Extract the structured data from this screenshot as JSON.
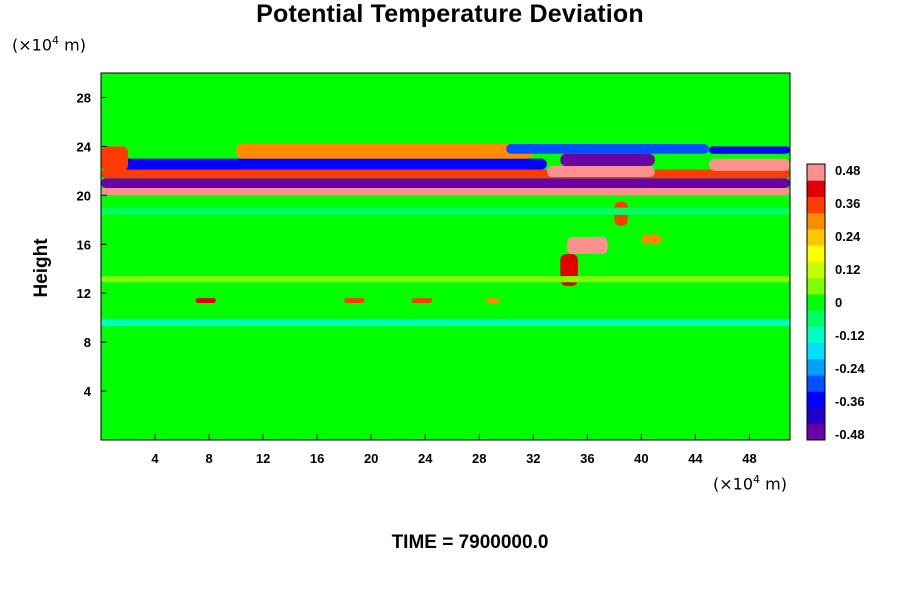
{
  "title": "Potential Temperature Deviation",
  "time_label": "TIME = 7900000.0",
  "chart_data": {
    "type": "heatmap",
    "title": "Potential Temperature Deviation",
    "xlabel": "",
    "ylabel": "Height",
    "x_unit_prefix": "(×10",
    "x_unit_exp": "4",
    "x_unit_suffix": " m)",
    "y_unit_prefix": "(×10",
    "y_unit_exp": "4",
    "y_unit_suffix": " m)",
    "xlim": [
      0,
      51
    ],
    "ylim": [
      0,
      30
    ],
    "xticks": [
      "4",
      "8",
      "12",
      "16",
      "20",
      "24",
      "28",
      "32",
      "36",
      "40",
      "44",
      "48"
    ],
    "yticks": [
      "4",
      "8",
      "12",
      "16",
      "20",
      "24",
      "28"
    ],
    "colorbar": {
      "min": -0.48,
      "max": 0.48,
      "ticks": [
        "0.48",
        "0.36",
        "0.24",
        "0.12",
        "0",
        "-0.12",
        "-0.24",
        "-0.36",
        "-0.48"
      ],
      "colors": [
        "#6a00a8",
        "#2000c8",
        "#0000ff",
        "#0050ff",
        "#00a0ff",
        "#00e0ff",
        "#00ffc0",
        "#00ff60",
        "#00ff00",
        "#80ff00",
        "#c8ff00",
        "#ffff00",
        "#ffc800",
        "#ff8c00",
        "#ff3c00",
        "#e00000",
        "#ff9090"
      ]
    },
    "background_value": 0.0,
    "features": [
      {
        "x0": 0,
        "x1": 51,
        "y0": 20.0,
        "y1": 20.6,
        "value": 0.48
      },
      {
        "x0": 0,
        "x1": 51,
        "y0": 20.6,
        "y1": 21.4,
        "value": -0.48
      },
      {
        "x0": 0,
        "x1": 51,
        "y0": 21.4,
        "y1": 22.1,
        "value": 0.36
      },
      {
        "x0": 0,
        "x1": 33,
        "y0": 22.1,
        "y1": 23.0,
        "value": -0.36
      },
      {
        "x0": 10,
        "x1": 32,
        "y0": 23.0,
        "y1": 24.2,
        "value": 0.3
      },
      {
        "x0": 33,
        "x1": 41,
        "y0": 21.5,
        "y1": 22.4,
        "value": 0.48
      },
      {
        "x0": 34,
        "x1": 41,
        "y0": 22.4,
        "y1": 23.4,
        "value": -0.48
      },
      {
        "x0": 30,
        "x1": 45,
        "y0": 23.4,
        "y1": 24.2,
        "value": -0.3
      },
      {
        "x0": 45,
        "x1": 51,
        "y0": 22.0,
        "y1": 23.0,
        "value": 0.48
      },
      {
        "x0": 45,
        "x1": 51,
        "y0": 23.4,
        "y1": 24.0,
        "value": -0.36
      },
      {
        "x0": 0,
        "x1": 2,
        "y0": 22.0,
        "y1": 24.0,
        "value": 0.36
      },
      {
        "x0": 34.5,
        "x1": 37.5,
        "y0": 15.2,
        "y1": 16.6,
        "value": 0.48
      },
      {
        "x0": 34.0,
        "x1": 35.3,
        "y0": 12.6,
        "y1": 15.2,
        "value": 0.4
      },
      {
        "x0": 38.0,
        "x1": 39.0,
        "y0": 17.5,
        "y1": 19.5,
        "value": 0.36
      },
      {
        "x0": 40.0,
        "x1": 41.5,
        "y0": 16.0,
        "y1": 16.8,
        "value": 0.3
      },
      {
        "x0": 7.0,
        "x1": 8.5,
        "y0": 11.2,
        "y1": 11.6,
        "value": 0.4
      },
      {
        "x0": 18.0,
        "x1": 19.5,
        "y0": 11.2,
        "y1": 11.6,
        "value": 0.36
      },
      {
        "x0": 23.0,
        "x1": 24.5,
        "y0": 11.2,
        "y1": 11.6,
        "value": 0.36
      },
      {
        "x0": 28.5,
        "x1": 29.5,
        "y0": 11.2,
        "y1": 11.6,
        "value": 0.3
      },
      {
        "x0": 0,
        "x1": 51,
        "y0": 9.3,
        "y1": 9.9,
        "value": -0.1
      },
      {
        "x0": 0,
        "x1": 51,
        "y0": 18.4,
        "y1": 19.0,
        "value": -0.06
      },
      {
        "x0": 0,
        "x1": 51,
        "y0": 12.9,
        "y1": 13.4,
        "value": 0.06
      }
    ]
  }
}
